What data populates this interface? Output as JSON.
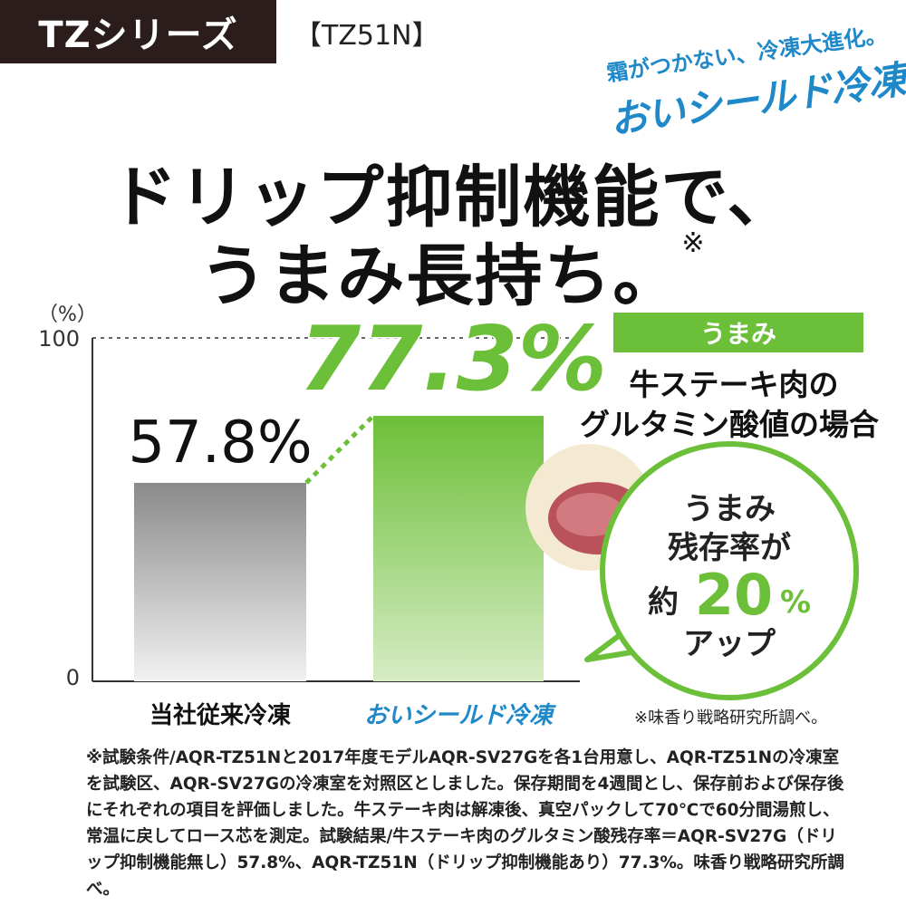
{
  "header": {
    "series": "TZシリーズ",
    "model": "【TZ51N】"
  },
  "logo": {
    "tagline": "霜がつかない、冷凍大進化。",
    "name": "おいシールド冷凍"
  },
  "headline": {
    "line1": "ドリップ抑制機能で、",
    "line2": "うまみ長持ち。",
    "mark": "※"
  },
  "info": {
    "tag": "うまみ",
    "title_line1": "牛ステーキ肉の",
    "title_line2": "グルタミン酸値の場合",
    "bubble_line1": "うまみ",
    "bubble_line2": "残存率が",
    "bubble_prefix": "約",
    "bubble_value": "20",
    "bubble_unit": "%",
    "bubble_line4": "アップ",
    "source": "※味香り戦略研究所調べ。"
  },
  "footnote": "※試験条件/AQR-TZ51Nと2017年度モデルAQR-SV27Gを各1台用意し、AQR-TZ51Nの冷凍室を試験区、AQR-SV27Gの冷凍室を対照区としました。保存期間を4週間とし、保存前および保存後にそれぞれの項目を評価しました。牛ステーキ肉は解凍後、真空パックして70℃で60分間湯煎し、常温に戻してロース芯を測定。試験結果/牛ステーキ肉のグルタミン酸残存率＝AQR-SV27G（ドリップ抑制機能無し）57.8%、AQR-TZ51N（ドリップ抑制機能あり）77.3%。味香り戦略研究所調べ。",
  "colors": {
    "header_bg": "#2b1d1b",
    "accent_green": "#6cbf38",
    "logo_blue": "#1f88c9",
    "bar_gray_top": "#8a8a8a",
    "bar_gray_bottom": "#f2f2f2",
    "bar_green_top": "#6cbf38",
    "bar_green_bottom": "#d6ecc4"
  },
  "chart_data": {
    "type": "bar",
    "ylabel": "（%）",
    "ylim": [
      0,
      100
    ],
    "yticks": [
      "0",
      "100"
    ],
    "categories": [
      "当社従来冷凍",
      "おいシールド冷凍"
    ],
    "values": [
      57.8,
      77.3
    ],
    "value_labels": [
      "57.8%",
      "77.3%"
    ],
    "grid": false
  }
}
